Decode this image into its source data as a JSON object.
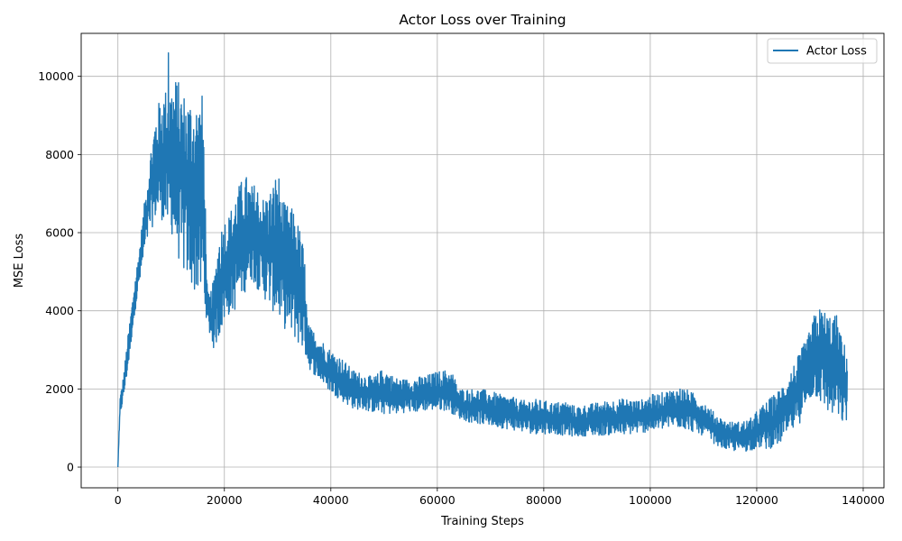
{
  "chart_data": {
    "type": "line",
    "title": "Actor Loss over Training",
    "xlabel": "Training Steps",
    "ylabel": "MSE Loss",
    "xlim": [
      -6900,
      143900
    ],
    "ylim": [
      -530,
      11100
    ],
    "xticks": [
      0,
      20000,
      40000,
      60000,
      80000,
      100000,
      120000,
      140000
    ],
    "yticks": [
      0,
      2000,
      4000,
      6000,
      8000,
      10000
    ],
    "grid": true,
    "legend_position": "top-right",
    "colors": {
      "series": "#1f77b4",
      "grid": "#b0b0b0",
      "axes": "#000000"
    },
    "series": [
      {
        "name": "Actor Loss",
        "envelope": {
          "x": [
            0,
            400,
            1000,
            2000,
            3000,
            4000,
            5000,
            6000,
            7000,
            8000,
            9000,
            10000,
            11000,
            12000,
            13000,
            14000,
            15000,
            16000,
            16800,
            17200,
            18000,
            19000,
            20000,
            21000,
            22000,
            23000,
            24000,
            25000,
            26000,
            27000,
            28000,
            29000,
            30000,
            31000,
            32000,
            33000,
            34000,
            35000,
            35600,
            36000,
            38000,
            40000,
            42000,
            44000,
            46000,
            48000,
            50000,
            52000,
            54000,
            56000,
            58000,
            60000,
            62000,
            63000,
            64000,
            66000,
            68000,
            70000,
            72000,
            74000,
            76000,
            78000,
            80000,
            82000,
            84000,
            86000,
            88000,
            90000,
            92000,
            94000,
            96000,
            98000,
            100000,
            102000,
            104000,
            106000,
            108000,
            110000,
            112000,
            114000,
            116000,
            118000,
            119500,
            120000,
            122000,
            124000,
            126000,
            128000,
            130000,
            131000,
            132000,
            133000,
            134000,
            135000,
            136000,
            137000
          ],
          "low": [
            0,
            1300,
            1700,
            2600,
            3800,
            4600,
            5400,
            6000,
            6300,
            6400,
            6100,
            6000,
            5500,
            5000,
            4800,
            4500,
            4400,
            4200,
            3700,
            3400,
            3000,
            3300,
            3700,
            3900,
            4000,
            4300,
            4500,
            4800,
            4600,
            4400,
            4200,
            4000,
            3800,
            3600,
            3400,
            3300,
            3100,
            2900,
            2700,
            2500,
            2200,
            1900,
            1700,
            1500,
            1450,
            1400,
            1350,
            1350,
            1400,
            1400,
            1450,
            1450,
            1450,
            1350,
            1250,
            1150,
            1100,
            1050,
            1000,
            950,
            900,
            850,
            850,
            850,
            800,
            780,
            800,
            800,
            820,
            800,
            830,
            870,
            900,
            950,
            1000,
            1000,
            900,
            800,
            600,
            450,
            400,
            400,
            450,
            500,
            450,
            550,
            800,
            1100,
            1700,
            1800,
            1600,
            1400,
            1300,
            1200,
            1100,
            1100
          ],
          "high": [
            0,
            1800,
            2300,
            3500,
            4600,
            5600,
            6800,
            8000,
            9000,
            9500,
            9700,
            9800,
            10000,
            9700,
            9500,
            9500,
            9400,
            9600,
            4500,
            4400,
            4800,
            6000,
            6400,
            6500,
            7000,
            7300,
            7500,
            7200,
            7300,
            6900,
            7000,
            7200,
            7700,
            6800,
            6700,
            6600,
            6200,
            5600,
            3700,
            3600,
            3300,
            3000,
            2800,
            2500,
            2400,
            2300,
            2550,
            2300,
            2250,
            2300,
            2350,
            2450,
            2500,
            2400,
            2000,
            2000,
            2000,
            1950,
            1850,
            1800,
            1700,
            1750,
            1700,
            1650,
            1700,
            1550,
            1600,
            1650,
            1700,
            1750,
            1750,
            1700,
            1850,
            1900,
            2000,
            2050,
            1900,
            1700,
            1400,
            1200,
            1150,
            1200,
            1300,
            1450,
            1700,
            1950,
            2400,
            2900,
            3500,
            4000,
            4100,
            4000,
            3900,
            3900,
            3300,
            3000
          ],
          "peak": {
            "x": 9500,
            "y": 10600
          }
        }
      }
    ]
  }
}
